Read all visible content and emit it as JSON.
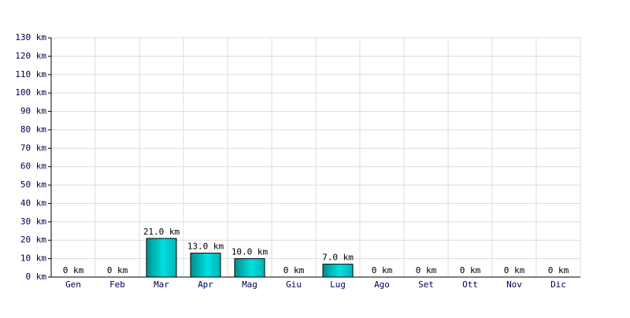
{
  "chart_data": {
    "type": "bar",
    "categories": [
      "Gen",
      "Feb",
      "Mar",
      "Apr",
      "Mag",
      "Giu",
      "Lug",
      "Ago",
      "Set",
      "Ott",
      "Nov",
      "Dic"
    ],
    "values": [
      0,
      0,
      21,
      13,
      10,
      0,
      7,
      0,
      0,
      0,
      0,
      0
    ],
    "value_labels": [
      "0 km",
      "0 km",
      "21.0 km",
      "13.0 km",
      "10.0 km",
      "0 km",
      "7.0 km",
      "0 km",
      "0 km",
      "0 km",
      "0 km",
      "0 km"
    ],
    "color": "#00c8c8",
    "ylim": [
      0,
      130
    ],
    "yticks": [
      {
        "value": 0,
        "label": "0 km"
      },
      {
        "value": 10,
        "label": "10 km"
      },
      {
        "value": 20,
        "label": "20 km"
      },
      {
        "value": 30,
        "label": "30 km"
      },
      {
        "value": 40,
        "label": "40 km"
      },
      {
        "value": 50,
        "label": "50 km"
      },
      {
        "value": 60,
        "label": "60 km"
      },
      {
        "value": 70,
        "label": "70 km"
      },
      {
        "value": 80,
        "label": "80 km"
      },
      {
        "value": 90,
        "label": "90 km"
      },
      {
        "value": 100,
        "label": "100 km"
      },
      {
        "value": 110,
        "label": "110 km"
      },
      {
        "value": 120,
        "label": "120 km"
      },
      {
        "value": 130,
        "label": "130 km"
      }
    ],
    "grid": true
  }
}
